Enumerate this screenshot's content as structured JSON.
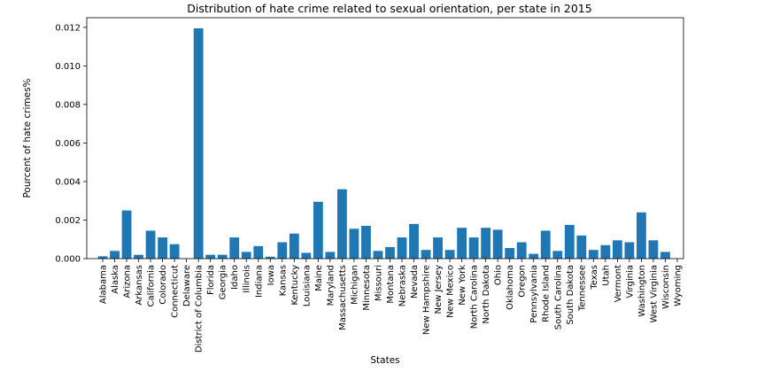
{
  "chart_data": {
    "type": "bar",
    "title": "Distribution of hate crime related to sexual orientation, per state in 2015",
    "xlabel": "States",
    "ylabel": "Pourcent of hate crimes%",
    "ylim": [
      0,
      0.0125
    ],
    "yticks": [
      "0.000",
      "0.002",
      "0.004",
      "0.006",
      "0.008",
      "0.010",
      "0.012"
    ],
    "grid": false,
    "color": "#1f77b4",
    "categories": [
      "Alabama",
      "Alaska",
      "Arizona",
      "Arkansas",
      "California",
      "Colorado",
      "Connecticut",
      "Delaware",
      "District of Columbia",
      "Florida",
      "Georgia",
      "Idaho",
      "Illinois",
      "Indiana",
      "Iowa",
      "Kansas",
      "Kentucky",
      "Louisiana",
      "Maine",
      "Maryland",
      "Massachusetts",
      "Michigan",
      "Minnesota",
      "Missouri",
      "Montana",
      "Nebraska",
      "Nevada",
      "New Hampshire",
      "New Jersey",
      "New Mexico",
      "New York",
      "North Carolina",
      "North Dakota",
      "Ohio",
      "Oklahoma",
      "Oregon",
      "Pennsylvania",
      "Rhode Island",
      "South Carolina",
      "South Dakota",
      "Tennessee",
      "Texas",
      "Utah",
      "Vermont",
      "Virginia",
      "Washington",
      "West Virginia",
      "Wisconsin",
      "Wyoming"
    ],
    "values": [
      0.00012,
      0.0004,
      0.0025,
      0.0002,
      0.00145,
      0.0011,
      0.00075,
      0.0,
      0.01195,
      0.0002,
      0.0002,
      0.0011,
      0.00035,
      0.00065,
      0.0001,
      0.00085,
      0.0013,
      0.0003,
      0.00295,
      0.00035,
      0.0036,
      0.00155,
      0.0017,
      0.0004,
      0.0006,
      0.0011,
      0.0018,
      0.00045,
      0.0011,
      0.00045,
      0.0016,
      0.0011,
      0.0016,
      0.0015,
      0.00055,
      0.00085,
      0.00025,
      0.00145,
      0.0004,
      0.00175,
      0.0012,
      0.00045,
      0.0007,
      0.00095,
      0.00085,
      0.0024,
      0.00095,
      0.00035,
      0.0
    ]
  }
}
